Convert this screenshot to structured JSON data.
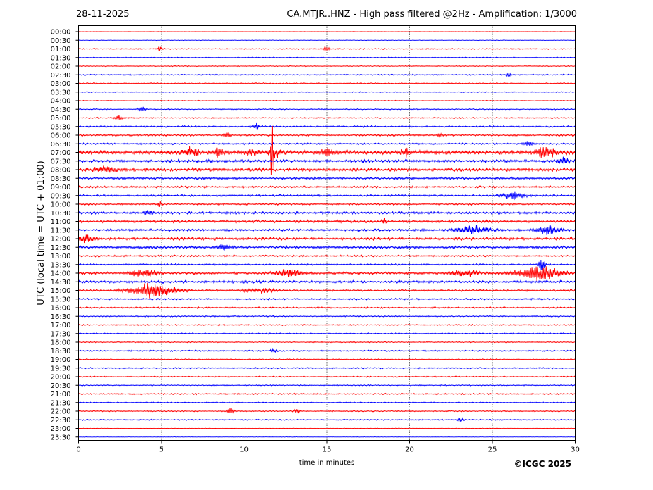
{
  "chart_data": {
    "type": "line",
    "date": "28-11-2025",
    "title": "CA.MTJR..HNZ - High pass filtered @2Hz - Amplification: 1/3000",
    "xlabel": "time in minutes",
    "ylabel": "UTC (local time = UTC + 01:00)",
    "xlim": [
      0,
      30
    ],
    "x_ticks": [
      "0",
      "5",
      "10",
      "15",
      "20",
      "25",
      "30"
    ],
    "x_tick_values": [
      0,
      5,
      10,
      15,
      20,
      25,
      30
    ],
    "x_grid": "dotted vertical lines at 5-minute intervals",
    "trace_colors": [
      "#ff0000",
      "#0000ff"
    ],
    "row_labels": [
      "00:00",
      "00:30",
      "01:00",
      "01:30",
      "02:00",
      "02:30",
      "03:00",
      "03:30",
      "04:00",
      "04:30",
      "05:00",
      "05:30",
      "06:00",
      "06:30",
      "07:00",
      "07:30",
      "08:00",
      "08:30",
      "09:00",
      "09:30",
      "10:00",
      "10:30",
      "11:00",
      "11:30",
      "12:00",
      "12:30",
      "13:00",
      "13:30",
      "14:00",
      "14:30",
      "15:00",
      "15:30",
      "16:00",
      "16:30",
      "17:00",
      "17:30",
      "18:00",
      "18:30",
      "19:00",
      "19:30",
      "20:00",
      "20:30",
      "21:00",
      "21:30",
      "22:00",
      "22:30",
      "23:00",
      "23:30"
    ],
    "row_noise_level": [
      0.2,
      0.3,
      0.6,
      0.5,
      0.5,
      0.7,
      0.7,
      0.5,
      0.5,
      0.6,
      0.7,
      0.9,
      1.0,
      1.0,
      2.4,
      1.6,
      1.9,
      1.3,
      1.1,
      1.1,
      1.0,
      1.4,
      1.5,
      1.3,
      1.6,
      1.4,
      1.0,
      0.9,
      1.4,
      1.4,
      1.1,
      0.9,
      0.9,
      0.7,
      0.7,
      0.7,
      0.6,
      0.8,
      0.6,
      0.7,
      0.7,
      0.6,
      0.8,
      0.6,
      0.7,
      0.7,
      0.3,
      0.2
    ],
    "events": [
      {
        "row": 2,
        "minute": 4.9,
        "amp": 3,
        "dur": 0.3
      },
      {
        "row": 2,
        "minute": 15.0,
        "amp": 3,
        "dur": 0.3
      },
      {
        "row": 5,
        "minute": 26.0,
        "amp": 3,
        "dur": 0.3
      },
      {
        "row": 9,
        "minute": 3.8,
        "amp": 5,
        "dur": 0.3
      },
      {
        "row": 10,
        "minute": 2.4,
        "amp": 4,
        "dur": 0.4
      },
      {
        "row": 11,
        "minute": 10.7,
        "amp": 6,
        "dur": 0.3
      },
      {
        "row": 12,
        "minute": 9.0,
        "amp": 4,
        "dur": 0.3
      },
      {
        "row": 12,
        "minute": 21.8,
        "amp": 4,
        "dur": 0.3
      },
      {
        "row": 13,
        "minute": 27.2,
        "amp": 4,
        "dur": 0.5
      },
      {
        "row": 14,
        "minute": 6.8,
        "amp": 9,
        "dur": 0.7
      },
      {
        "row": 14,
        "minute": 8.5,
        "amp": 6,
        "dur": 0.6
      },
      {
        "row": 14,
        "minute": 10.5,
        "amp": 5,
        "dur": 0.6
      },
      {
        "row": 14,
        "minute": 11.7,
        "amp": 60,
        "dur": 0.08
      },
      {
        "row": 14,
        "minute": 11.8,
        "amp": 8,
        "dur": 0.6
      },
      {
        "row": 14,
        "minute": 15.0,
        "amp": 6,
        "dur": 0.6
      },
      {
        "row": 14,
        "minute": 19.7,
        "amp": 5,
        "dur": 0.5
      },
      {
        "row": 14,
        "minute": 28.2,
        "amp": 10,
        "dur": 0.9
      },
      {
        "row": 15,
        "minute": 29.3,
        "amp": 6,
        "dur": 0.5
      },
      {
        "row": 16,
        "minute": 1.6,
        "amp": 7,
        "dur": 0.9
      },
      {
        "row": 19,
        "minute": 26.2,
        "amp": 6,
        "dur": 1.2
      },
      {
        "row": 20,
        "minute": 4.9,
        "amp": 5,
        "dur": 0.2
      },
      {
        "row": 21,
        "minute": 4.2,
        "amp": 4,
        "dur": 0.4
      },
      {
        "row": 22,
        "minute": 18.5,
        "amp": 6,
        "dur": 0.2
      },
      {
        "row": 23,
        "minute": 23.8,
        "amp": 7,
        "dur": 1.6
      },
      {
        "row": 23,
        "minute": 28.3,
        "amp": 8,
        "dur": 1.2
      },
      {
        "row": 24,
        "minute": 0.4,
        "amp": 7,
        "dur": 0.9
      },
      {
        "row": 25,
        "minute": 8.7,
        "amp": 5,
        "dur": 0.5
      },
      {
        "row": 27,
        "minute": 28.0,
        "amp": 14,
        "dur": 0.3
      },
      {
        "row": 28,
        "minute": 4.0,
        "amp": 6,
        "dur": 1.4
      },
      {
        "row": 28,
        "minute": 12.7,
        "amp": 6,
        "dur": 1.2
      },
      {
        "row": 28,
        "minute": 23.3,
        "amp": 5,
        "dur": 1.4
      },
      {
        "row": 28,
        "minute": 27.8,
        "amp": 11,
        "dur": 2.2
      },
      {
        "row": 30,
        "minute": 4.5,
        "amp": 11,
        "dur": 2.4
      },
      {
        "row": 30,
        "minute": 11.0,
        "amp": 4,
        "dur": 1.4
      },
      {
        "row": 37,
        "minute": 11.8,
        "amp": 4,
        "dur": 0.3
      },
      {
        "row": 44,
        "minute": 9.2,
        "amp": 5,
        "dur": 0.3
      },
      {
        "row": 44,
        "minute": 13.2,
        "amp": 4,
        "dur": 0.3
      },
      {
        "row": 45,
        "minute": 23.1,
        "amp": 3,
        "dur": 0.3
      }
    ]
  },
  "copyright": "©ICGC 2025"
}
